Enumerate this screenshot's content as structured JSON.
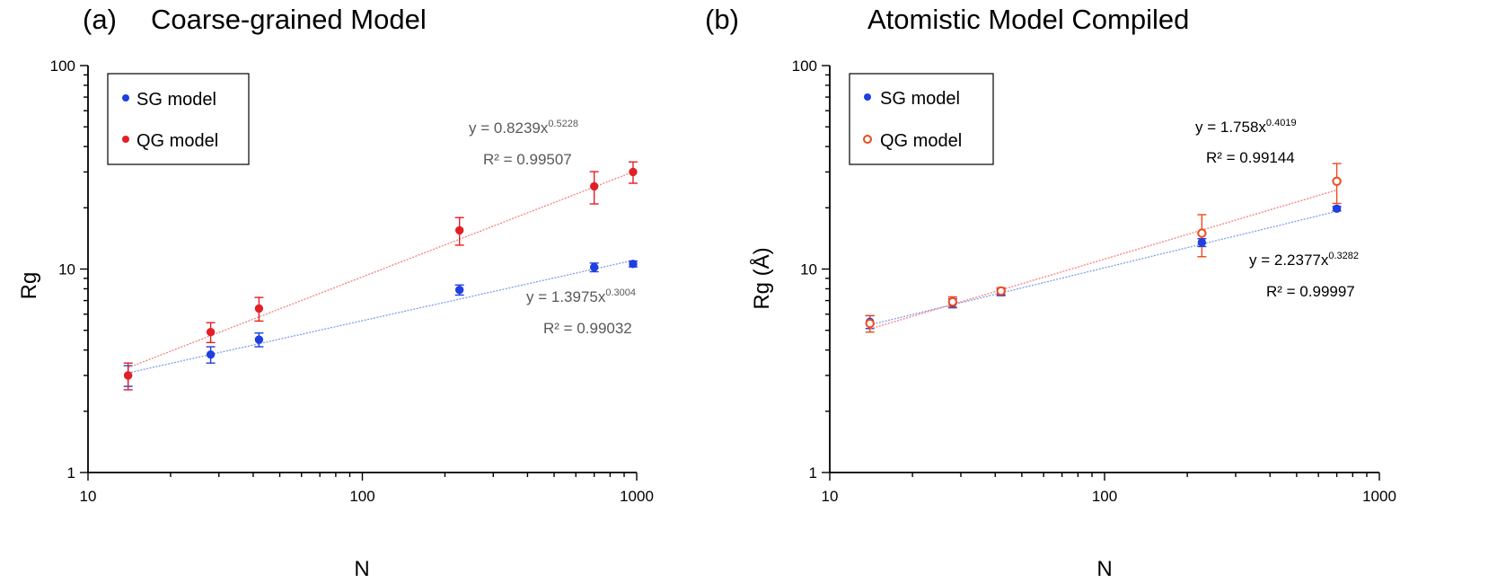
{
  "chart_data": [
    {
      "type": "scatter",
      "panel_label": "(a)",
      "title": "Coarse-grained Model",
      "xlabel": "N",
      "ylabel": "Rg",
      "xscale": "log",
      "yscale": "log",
      "xlim": [
        10,
        1000
      ],
      "ylim": [
        1,
        100
      ],
      "x_ticks": [
        "10",
        "100",
        "1000"
      ],
      "y_ticks": [
        "1",
        "10",
        "100"
      ],
      "legend": {
        "position": "top-left",
        "entries": [
          "SG model",
          "QG model"
        ]
      },
      "series": [
        {
          "name": "SG model",
          "color": "#1f3fe0",
          "x": [
            14,
            28,
            42,
            226,
            700,
            970
          ],
          "y": [
            3.0,
            3.8,
            4.5,
            7.9,
            10.2,
            10.6
          ],
          "err": [
            0.35,
            0.35,
            0.35,
            0.45,
            0.5,
            0.35
          ],
          "trend": {
            "a": 1.3975,
            "b": 0.3004,
            "equation": "y = 1.3975x",
            "exponent": "0.3004",
            "r2": "R² = 0.99032"
          }
        },
        {
          "name": "QG model",
          "color": "#e21f26",
          "x": [
            14,
            28,
            42,
            226,
            700,
            970
          ],
          "y": [
            3.0,
            4.9,
            6.4,
            15.5,
            25.5,
            30.0
          ],
          "err": [
            0.45,
            0.55,
            0.85,
            2.4,
            4.6,
            3.6
          ],
          "trend": {
            "a": 0.8239,
            "b": 0.5228,
            "equation": "y = 0.8239x",
            "exponent": "0.5228",
            "r2": "R² = 0.99507"
          }
        }
      ]
    },
    {
      "type": "scatter",
      "panel_label": "(b)",
      "title": "Atomistic Model Compiled",
      "xlabel": "N",
      "ylabel": "Rg (Å)",
      "xscale": "log",
      "yscale": "log",
      "xlim": [
        10,
        1000
      ],
      "ylim": [
        1,
        100
      ],
      "x_ticks": [
        "10",
        "100",
        "1000"
      ],
      "y_ticks": [
        "1",
        "10",
        "100"
      ],
      "legend": {
        "position": "top-left",
        "entries": [
          "SG model",
          "QG model"
        ]
      },
      "series": [
        {
          "name": "SG model",
          "color": "#1f3fe0",
          "x": [
            14,
            28,
            42,
            226,
            700
          ],
          "y": [
            5.5,
            6.8,
            7.7,
            13.5,
            19.8
          ],
          "err": [
            0.4,
            0.35,
            0.3,
            0.6,
            0.5
          ],
          "trend": {
            "a": 2.2377,
            "b": 0.3282,
            "equation": "y = 2.2377x",
            "exponent": "0.3282",
            "r2": "R² = 0.99997"
          }
        },
        {
          "name": "QG model",
          "color": "#f0481c",
          "x": [
            14,
            28,
            42,
            226,
            700
          ],
          "y": [
            5.4,
            6.9,
            7.8,
            15.0,
            27.0
          ],
          "err": [
            0.5,
            0.4,
            0.3,
            3.5,
            6.0
          ],
          "trend": {
            "a": 1.758,
            "b": 0.4019,
            "equation": "y = 1.758x",
            "exponent": "0.4019",
            "r2": "R² = 0.99144"
          }
        }
      ]
    }
  ]
}
